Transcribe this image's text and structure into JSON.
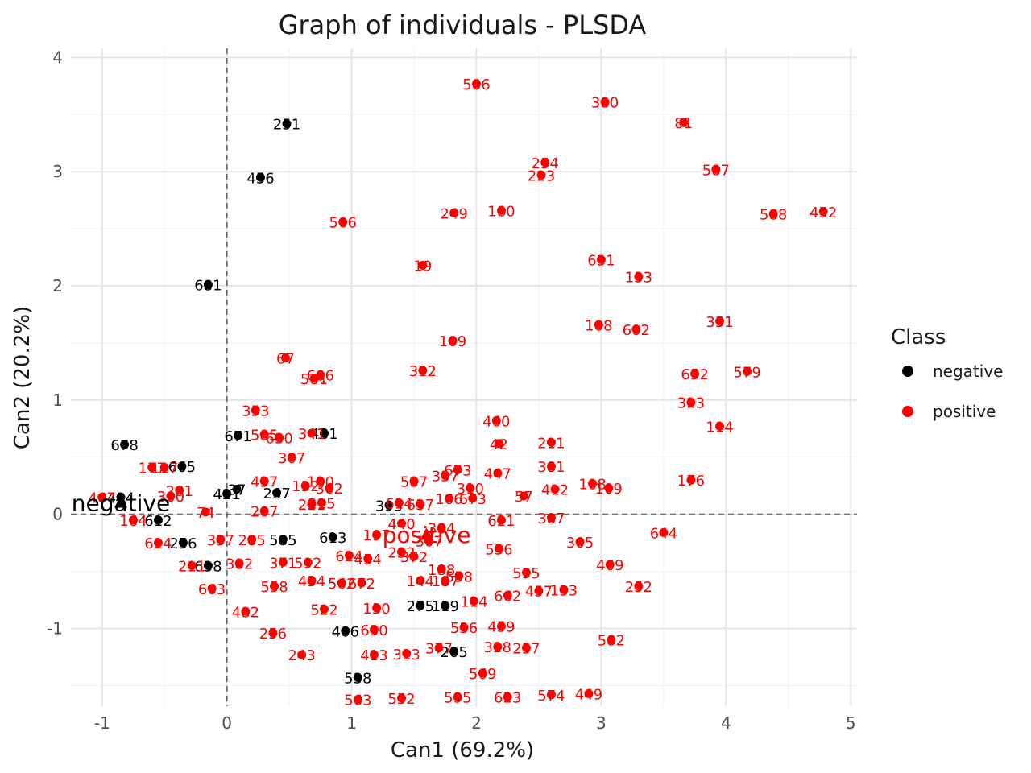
{
  "chart_data": {
    "type": "scatter",
    "title": "Graph of individuals - PLSDA",
    "xlabel": "Can1 (69.2%)",
    "ylabel": "Can2 (20.2%)",
    "xlim": [
      -1.25,
      5.05
    ],
    "ylim": [
      -1.68,
      4.08
    ],
    "x_ticks": [
      -1,
      0,
      1,
      2,
      3,
      4,
      5
    ],
    "y_ticks": [
      -1,
      0,
      1,
      2,
      3,
      4
    ],
    "x_tick_labels": [
      "-1",
      "0",
      "1",
      "2",
      "3",
      "4",
      "5"
    ],
    "y_tick_labels": [
      "-1",
      "0",
      "1",
      "2",
      "3",
      "4"
    ],
    "grid": true,
    "reference_lines": {
      "x": 0,
      "y": 0,
      "style": "dashed"
    },
    "legend": {
      "title": "Class",
      "position": "right",
      "entries": [
        {
          "name": "negative",
          "color": "#000000"
        },
        {
          "name": "positive",
          "color": "#ff0000"
        }
      ]
    },
    "centroids": [
      {
        "label": "negative",
        "x": -0.85,
        "y": 0.1,
        "color": "#000000"
      },
      {
        "label": "positive",
        "x": 1.6,
        "y": -0.18,
        "color": "#ff0000"
      }
    ],
    "series": [
      {
        "name": "negative",
        "color": "#000000",
        "points": [
          {
            "label": "251",
            "x": 0.48,
            "y": 3.42
          },
          {
            "label": "456",
            "x": 0.27,
            "y": 2.95
          },
          {
            "label": "681",
            "x": -0.15,
            "y": 2.01
          },
          {
            "label": "678",
            "x": -0.82,
            "y": 0.61
          },
          {
            "label": "665",
            "x": -0.36,
            "y": 0.42
          },
          {
            "label": "671",
            "x": 0.09,
            "y": 0.69
          },
          {
            "label": "431",
            "x": 0.78,
            "y": 0.71
          },
          {
            "label": "421",
            "x": 0.0,
            "y": 0.18
          },
          {
            "label": "37",
            "x": 0.08,
            "y": 0.22
          },
          {
            "label": "267",
            "x": 0.4,
            "y": 0.19
          },
          {
            "label": "395",
            "x": 1.3,
            "y": 0.08
          },
          {
            "label": "434",
            "x": -0.85,
            "y": 0.15
          },
          {
            "label": "612",
            "x": -0.55,
            "y": -0.05
          },
          {
            "label": "256",
            "x": -0.35,
            "y": -0.25
          },
          {
            "label": "638",
            "x": -0.15,
            "y": -0.45
          },
          {
            "label": "585",
            "x": 0.45,
            "y": -0.22
          },
          {
            "label": "613",
            "x": 0.85,
            "y": -0.2
          },
          {
            "label": "275",
            "x": 1.55,
            "y": -0.8
          },
          {
            "label": "119",
            "x": 1.75,
            "y": -0.8
          },
          {
            "label": "406",
            "x": 0.95,
            "y": -1.02
          },
          {
            "label": "205",
            "x": 1.82,
            "y": -1.2
          },
          {
            "label": "538",
            "x": 1.05,
            "y": -1.43
          }
        ]
      },
      {
        "name": "positive",
        "color": "#ff0000",
        "points": [
          {
            "label": "586",
            "x": 2.0,
            "y": 3.77
          },
          {
            "label": "380",
            "x": 3.03,
            "y": 3.61
          },
          {
            "label": "81",
            "x": 3.66,
            "y": 3.43
          },
          {
            "label": "254",
            "x": 2.55,
            "y": 3.08
          },
          {
            "label": "223",
            "x": 2.52,
            "y": 2.97
          },
          {
            "label": "587",
            "x": 3.92,
            "y": 3.02
          },
          {
            "label": "506",
            "x": 0.93,
            "y": 2.56
          },
          {
            "label": "249",
            "x": 1.82,
            "y": 2.64
          },
          {
            "label": "180",
            "x": 2.2,
            "y": 2.66
          },
          {
            "label": "588",
            "x": 4.38,
            "y": 2.63
          },
          {
            "label": "452",
            "x": 4.78,
            "y": 2.65
          },
          {
            "label": "19",
            "x": 1.57,
            "y": 2.18
          },
          {
            "label": "631",
            "x": 3.0,
            "y": 2.23
          },
          {
            "label": "133",
            "x": 3.3,
            "y": 2.08
          },
          {
            "label": "108",
            "x": 2.98,
            "y": 1.66
          },
          {
            "label": "602",
            "x": 3.28,
            "y": 1.62
          },
          {
            "label": "351",
            "x": 3.95,
            "y": 1.69
          },
          {
            "label": "109",
            "x": 1.81,
            "y": 1.52
          },
          {
            "label": "67",
            "x": 0.47,
            "y": 1.37
          },
          {
            "label": "606",
            "x": 0.75,
            "y": 1.22
          },
          {
            "label": "581",
            "x": 0.7,
            "y": 1.19
          },
          {
            "label": "312",
            "x": 1.57,
            "y": 1.26
          },
          {
            "label": "652",
            "x": 3.75,
            "y": 1.23
          },
          {
            "label": "579",
            "x": 4.17,
            "y": 1.25
          },
          {
            "label": "323",
            "x": 3.72,
            "y": 0.98
          },
          {
            "label": "114",
            "x": 3.95,
            "y": 0.77
          },
          {
            "label": "460",
            "x": 2.16,
            "y": 0.82
          },
          {
            "label": "353",
            "x": 0.23,
            "y": 0.91
          },
          {
            "label": "585",
            "x": 0.3,
            "y": 0.7
          },
          {
            "label": "630",
            "x": 0.42,
            "y": 0.67
          },
          {
            "label": "341",
            "x": 0.68,
            "y": 0.71
          },
          {
            "label": "42",
            "x": 2.18,
            "y": 0.62
          },
          {
            "label": "211",
            "x": 2.6,
            "y": 0.63
          },
          {
            "label": "307",
            "x": 0.52,
            "y": 0.5
          },
          {
            "label": "381",
            "x": 2.6,
            "y": 0.42
          },
          {
            "label": "673",
            "x": 1.85,
            "y": 0.39
          },
          {
            "label": "337",
            "x": 1.75,
            "y": 0.34
          },
          {
            "label": "447",
            "x": 2.17,
            "y": 0.36
          },
          {
            "label": "587",
            "x": 1.5,
            "y": 0.29
          },
          {
            "label": "176",
            "x": 3.72,
            "y": 0.3
          },
          {
            "label": "108",
            "x": 2.93,
            "y": 0.27
          },
          {
            "label": "109",
            "x": 3.06,
            "y": 0.23
          },
          {
            "label": "437",
            "x": 0.3,
            "y": 0.29
          },
          {
            "label": "130",
            "x": 0.75,
            "y": 0.29
          },
          {
            "label": "177",
            "x": -0.6,
            "y": 0.41
          },
          {
            "label": "117",
            "x": -0.5,
            "y": 0.41
          },
          {
            "label": "261",
            "x": -0.38,
            "y": 0.21
          },
          {
            "label": "132",
            "x": 0.63,
            "y": 0.25
          },
          {
            "label": "362",
            "x": 0.82,
            "y": 0.23
          },
          {
            "label": "310",
            "x": 1.95,
            "y": 0.23
          },
          {
            "label": "412",
            "x": 2.63,
            "y": 0.22
          },
          {
            "label": "57",
            "x": 2.38,
            "y": 0.16
          },
          {
            "label": "166",
            "x": 1.78,
            "y": 0.14
          },
          {
            "label": "673",
            "x": 1.97,
            "y": 0.14
          },
          {
            "label": "300",
            "x": -0.45,
            "y": 0.16
          },
          {
            "label": "467",
            "x": -1.0,
            "y": 0.15
          },
          {
            "label": "221",
            "x": 0.68,
            "y": 0.09
          },
          {
            "label": "215",
            "x": 0.76,
            "y": 0.1
          },
          {
            "label": "207",
            "x": 0.3,
            "y": 0.03
          },
          {
            "label": "74",
            "x": -0.17,
            "y": 0.02
          },
          {
            "label": "614",
            "x": 1.38,
            "y": 0.1
          },
          {
            "label": "637",
            "x": 1.55,
            "y": 0.09
          },
          {
            "label": "387",
            "x": 2.6,
            "y": -0.03
          },
          {
            "label": "621",
            "x": 2.2,
            "y": -0.05
          },
          {
            "label": "440",
            "x": 1.4,
            "y": -0.08
          },
          {
            "label": "384",
            "x": 1.72,
            "y": -0.12
          },
          {
            "label": "644",
            "x": 3.5,
            "y": -0.16
          },
          {
            "label": "305",
            "x": 2.83,
            "y": -0.24
          },
          {
            "label": "197",
            "x": 1.2,
            "y": -0.18
          },
          {
            "label": "307",
            "x": 1.62,
            "y": -0.23
          },
          {
            "label": "536",
            "x": 2.18,
            "y": -0.3
          },
          {
            "label": "164",
            "x": -0.75,
            "y": -0.05
          },
          {
            "label": "624",
            "x": -0.55,
            "y": -0.25
          },
          {
            "label": "337",
            "x": -0.05,
            "y": -0.22
          },
          {
            "label": "285",
            "x": 0.2,
            "y": -0.22
          },
          {
            "label": "624",
            "x": 0.98,
            "y": -0.36
          },
          {
            "label": "454",
            "x": 1.13,
            "y": -0.39
          },
          {
            "label": "232",
            "x": 1.4,
            "y": -0.33
          },
          {
            "label": "372",
            "x": 1.5,
            "y": -0.37
          },
          {
            "label": "371",
            "x": 0.45,
            "y": -0.42
          },
          {
            "label": "592",
            "x": 0.65,
            "y": -0.42
          },
          {
            "label": "211",
            "x": -0.28,
            "y": -0.45
          },
          {
            "label": "382",
            "x": 0.1,
            "y": -0.43
          },
          {
            "label": "469",
            "x": 3.07,
            "y": -0.44
          },
          {
            "label": "535",
            "x": 2.4,
            "y": -0.51
          },
          {
            "label": "188",
            "x": 1.72,
            "y": -0.48
          },
          {
            "label": "558",
            "x": 1.86,
            "y": -0.54
          },
          {
            "label": "144",
            "x": 1.55,
            "y": -0.58
          },
          {
            "label": "187",
            "x": 1.75,
            "y": -0.58
          },
          {
            "label": "434",
            "x": 0.68,
            "y": -0.58
          },
          {
            "label": "562",
            "x": 0.92,
            "y": -0.6
          },
          {
            "label": "672",
            "x": 1.08,
            "y": -0.6
          },
          {
            "label": "558",
            "x": 0.38,
            "y": -0.63
          },
          {
            "label": "663",
            "x": -0.12,
            "y": -0.65
          },
          {
            "label": "252",
            "x": 3.3,
            "y": -0.63
          },
          {
            "label": "133",
            "x": 2.7,
            "y": -0.66
          },
          {
            "label": "457",
            "x": 2.5,
            "y": -0.67
          },
          {
            "label": "662",
            "x": 2.25,
            "y": -0.71
          },
          {
            "label": "114",
            "x": 1.98,
            "y": -0.76
          },
          {
            "label": "522",
            "x": 0.78,
            "y": -0.83
          },
          {
            "label": "130",
            "x": 1.2,
            "y": -0.82
          },
          {
            "label": "482",
            "x": 0.15,
            "y": -0.85
          },
          {
            "label": "536",
            "x": 1.9,
            "y": -0.99
          },
          {
            "label": "459",
            "x": 2.2,
            "y": -0.98
          },
          {
            "label": "630",
            "x": 1.18,
            "y": -1.01
          },
          {
            "label": "256",
            "x": 0.37,
            "y": -1.04
          },
          {
            "label": "582",
            "x": 3.08,
            "y": -1.1
          },
          {
            "label": "377",
            "x": 1.7,
            "y": -1.17
          },
          {
            "label": "328",
            "x": 2.17,
            "y": -1.16
          },
          {
            "label": "257",
            "x": 2.4,
            "y": -1.17
          },
          {
            "label": "413",
            "x": 1.18,
            "y": -1.23
          },
          {
            "label": "313",
            "x": 1.44,
            "y": -1.22
          },
          {
            "label": "243",
            "x": 0.6,
            "y": -1.23
          },
          {
            "label": "569",
            "x": 2.05,
            "y": -1.39
          },
          {
            "label": "563",
            "x": 1.05,
            "y": -1.62
          },
          {
            "label": "552",
            "x": 1.4,
            "y": -1.61
          },
          {
            "label": "595",
            "x": 1.85,
            "y": -1.6
          },
          {
            "label": "623",
            "x": 2.25,
            "y": -1.6
          },
          {
            "label": "574",
            "x": 2.6,
            "y": -1.58
          },
          {
            "label": "449",
            "x": 2.9,
            "y": -1.57
          }
        ]
      }
    ]
  }
}
